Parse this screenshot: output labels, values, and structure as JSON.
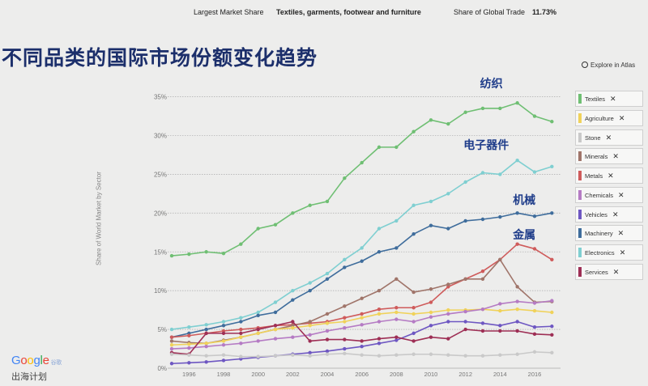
{
  "topbar": {
    "largest_label": "Largest Market Share",
    "largest_value": "Textiles, garments, footwear and furniture",
    "share_label": "Share of Global Trade",
    "share_value": "11.73%"
  },
  "heading": "不同品类的国际市场份额变化趋势",
  "explore": "Explore in Atlas",
  "brand": {
    "logo": "Google",
    "logo_tag": "谷歌",
    "program": "出海计划"
  },
  "legend": [
    {
      "label": "Textiles",
      "color": "#6fbf73"
    },
    {
      "label": "Agriculture",
      "color": "#f0d25a"
    },
    {
      "label": "Stone",
      "color": "#c9c9c9"
    },
    {
      "label": "Minerals",
      "color": "#a0756a"
    },
    {
      "label": "Metals",
      "color": "#cf5b5b"
    },
    {
      "label": "Chemicals",
      "color": "#b57bc4"
    },
    {
      "label": "Vehicles",
      "color": "#6e57c2"
    },
    {
      "label": "Machinery",
      "color": "#3f6d9c"
    },
    {
      "label": "Electronics",
      "color": "#7fcfd1"
    },
    {
      "label": "Services",
      "color": "#9e2f55"
    }
  ],
  "legend_close": "✕",
  "chart_data": {
    "type": "line",
    "ylabel": "Share of World Market by Sector",
    "yticks": [
      "0%",
      "5%",
      "10%",
      "15%",
      "20%",
      "25%",
      "30%",
      "35%"
    ],
    "xticks": [
      "1996",
      "1998",
      "2000",
      "2002",
      "2004",
      "2006",
      "2008",
      "2010",
      "2012",
      "2014",
      "2016"
    ],
    "xlim": [
      1995,
      2017.5
    ],
    "ylim": [
      0,
      36
    ],
    "grid": "horizontal",
    "x": [
      1995,
      1996,
      1997,
      1998,
      1999,
      2000,
      2001,
      2002,
      2003,
      2004,
      2005,
      2006,
      2007,
      2008,
      2009,
      2010,
      2011,
      2012,
      2013,
      2014,
      2015,
      2016,
      2017
    ],
    "series": [
      {
        "name": "Textiles",
        "color": "#6fbf73",
        "values": [
          14.5,
          14.7,
          15.0,
          14.8,
          16.0,
          18.0,
          18.5,
          20.0,
          21.0,
          21.5,
          24.5,
          26.5,
          28.5,
          28.5,
          30.5,
          32.0,
          31.5,
          33.0,
          33.5,
          33.5,
          34.2,
          32.5,
          31.8
        ]
      },
      {
        "name": "Electronics",
        "color": "#7fcfd1",
        "values": [
          5.0,
          5.3,
          5.6,
          6.0,
          6.5,
          7.2,
          8.5,
          10.0,
          11.0,
          12.2,
          14.0,
          15.5,
          18.0,
          19.0,
          21.0,
          21.5,
          22.5,
          24.0,
          25.2,
          25.0,
          26.8,
          25.3,
          26.0
        ]
      },
      {
        "name": "Machinery",
        "color": "#3f6d9c",
        "values": [
          4.0,
          4.5,
          5.0,
          5.5,
          6.0,
          6.8,
          7.2,
          8.8,
          10.0,
          11.5,
          13.0,
          13.8,
          15.0,
          15.5,
          17.3,
          18.4,
          18.0,
          19.0,
          19.2,
          19.5,
          20.0,
          19.6,
          20.0
        ]
      },
      {
        "name": "Metals",
        "color": "#cf5b5b",
        "values": [
          4.0,
          4.2,
          4.5,
          4.8,
          5.0,
          5.2,
          5.5,
          5.6,
          5.8,
          6.0,
          6.5,
          7.0,
          7.6,
          7.8,
          7.8,
          8.5,
          10.5,
          11.5,
          12.5,
          14.0,
          16.0,
          15.4,
          14.0
        ]
      },
      {
        "name": "Minerals",
        "color": "#a0756a",
        "values": [
          3.5,
          3.3,
          3.2,
          3.6,
          4.0,
          4.5,
          5.0,
          5.5,
          6.0,
          7.0,
          8.0,
          9.0,
          10.0,
          11.5,
          9.8,
          10.2,
          10.8,
          11.5,
          11.5,
          14.0,
          10.5,
          8.5,
          8.6
        ]
      },
      {
        "name": "Agriculture",
        "color": "#f0d25a",
        "values": [
          3.0,
          3.1,
          3.2,
          3.5,
          4.0,
          4.5,
          5.0,
          5.2,
          5.5,
          5.8,
          6.0,
          6.5,
          7.0,
          7.2,
          7.0,
          7.2,
          7.5,
          7.5,
          7.6,
          7.4,
          7.6,
          7.4,
          7.2
        ]
      },
      {
        "name": "Chemicals",
        "color": "#b57bc4",
        "values": [
          2.5,
          2.6,
          2.8,
          3.0,
          3.2,
          3.5,
          3.8,
          4.0,
          4.3,
          4.8,
          5.2,
          5.6,
          6.0,
          6.3,
          6.0,
          6.6,
          7.0,
          7.3,
          7.6,
          8.3,
          8.6,
          8.4,
          8.7
        ]
      },
      {
        "name": "Vehicles",
        "color": "#6e57c2",
        "values": [
          0.6,
          0.7,
          0.8,
          1.0,
          1.2,
          1.4,
          1.6,
          1.8,
          2.0,
          2.2,
          2.5,
          2.8,
          3.2,
          3.6,
          4.5,
          5.5,
          6.0,
          6.0,
          5.8,
          5.5,
          6.0,
          5.3,
          5.4
        ]
      },
      {
        "name": "Services",
        "color": "#9e2f55",
        "values": [
          2.0,
          1.8,
          4.5,
          4.5,
          4.5,
          5.0,
          5.5,
          6.0,
          3.5,
          3.7,
          3.7,
          3.5,
          3.8,
          4.0,
          3.5,
          4.0,
          3.8,
          5.0,
          4.8,
          4.8,
          4.8,
          4.4,
          4.3
        ]
      },
      {
        "name": "Stone",
        "color": "#c9c9c9",
        "values": [
          1.8,
          1.7,
          1.6,
          1.7,
          1.5,
          1.5,
          1.6,
          1.7,
          1.6,
          1.8,
          1.9,
          1.7,
          1.6,
          1.7,
          1.8,
          1.8,
          1.7,
          1.6,
          1.6,
          1.7,
          1.8,
          2.1,
          2.0
        ]
      }
    ],
    "annotations": [
      {
        "text": "纺织",
        "x": 2013.5,
        "y": 36.2
      },
      {
        "text": "电子器件",
        "x": 2013.2,
        "y": 28.3
      },
      {
        "text": "机械",
        "x": 2015.4,
        "y": 21.2
      },
      {
        "text": "金属",
        "x": 2015.4,
        "y": 16.7
      }
    ]
  }
}
